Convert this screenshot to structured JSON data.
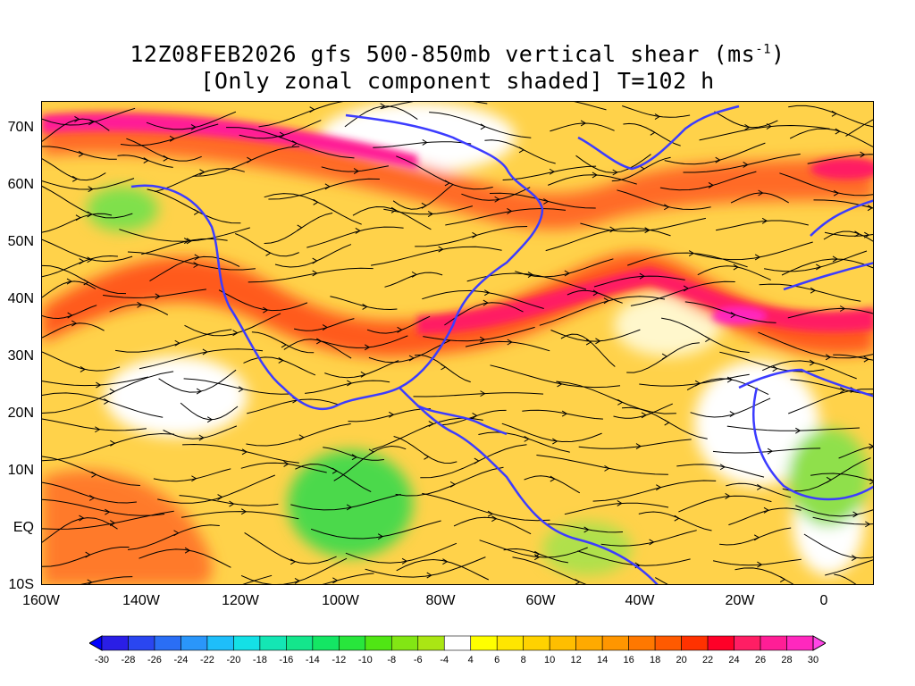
{
  "title": {
    "line1_prefix": "12Z08FEB2026 gfs 500-850mb vertical shear (ms",
    "line1_sup": "-1",
    "line1_suffix": ")",
    "line2": "[Only zonal component shaded] T=102 h"
  },
  "latitude_labels": [
    "70N",
    "60N",
    "50N",
    "40N",
    "30N",
    "20N",
    "10N",
    "EQ",
    "10S"
  ],
  "longitude_labels": [
    "160W",
    "140W",
    "120W",
    "100W",
    "80W",
    "60W",
    "40W",
    "20W",
    "0"
  ],
  "colorbar": {
    "labels": [
      "-30",
      "-28",
      "-26",
      "-24",
      "-22",
      "-20",
      "-18",
      "-16",
      "-14",
      "-12",
      "-10",
      "-8",
      "-6",
      "-4",
      "4",
      "6",
      "8",
      "10",
      "12",
      "14",
      "16",
      "18",
      "20",
      "22",
      "24",
      "26",
      "28",
      "30"
    ],
    "colors": [
      "#2a1ee6",
      "#2a46f0",
      "#2a6ef5",
      "#2a96fa",
      "#1ebefa",
      "#14e0e6",
      "#14e6b4",
      "#14e68c",
      "#14e664",
      "#28e63c",
      "#50e614",
      "#82e614",
      "#aae614",
      "#ffffff",
      "#ffff00",
      "#ffe600",
      "#ffd200",
      "#ffbe00",
      "#ffaa00",
      "#ff9600",
      "#ff7800",
      "#ff5a00",
      "#ff3200",
      "#ff0028",
      "#ff1e64",
      "#ff1e96",
      "#ff28be"
    ],
    "min_color": "#0000ff",
    "max_color": "#ff46e6"
  },
  "colors": {
    "coastline": "#3c3cff",
    "streamline": "#000000"
  }
}
